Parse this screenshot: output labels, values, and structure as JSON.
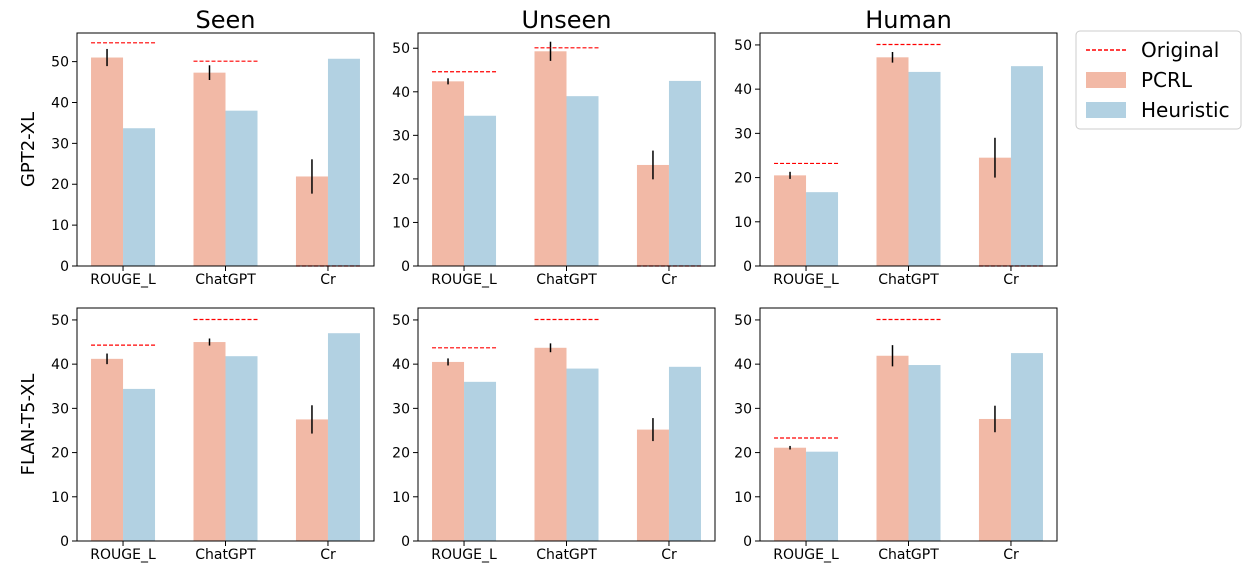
{
  "colors": {
    "pcrl": "#f2b9a6",
    "heuristic": "#b2d1e2",
    "original": "#ff0000",
    "error": "#000000",
    "axis": "#000000"
  },
  "legend": {
    "placement": "right",
    "entries": [
      {
        "label": "Original",
        "kind": "dashed-line"
      },
      {
        "label": "PCRL",
        "kind": "patch"
      },
      {
        "label": "Heuristic",
        "kind": "patch"
      }
    ]
  },
  "col_titles": [
    "Seen",
    "Unseen",
    "Human"
  ],
  "row_titles": [
    "GPT2-XL",
    "FLAN-T5-XL"
  ],
  "chart_data": [
    {
      "type": "bar",
      "row": "GPT2-XL",
      "col": "Seen",
      "categories": [
        "ROUGE_L",
        "ChatGPT",
        "Cr"
      ],
      "ylim": [
        0,
        57
      ],
      "yticks": [
        0,
        10,
        20,
        30,
        40,
        50
      ],
      "series": [
        {
          "name": "PCRL",
          "values": [
            51,
            47.3,
            21.9
          ],
          "errors": [
            2.1,
            1.8,
            4.2
          ]
        },
        {
          "name": "Heuristic",
          "values": [
            33.7,
            38,
            50.7
          ]
        }
      ],
      "original": [
        54.6,
        50.1,
        0
      ]
    },
    {
      "type": "bar",
      "row": "GPT2-XL",
      "col": "Unseen",
      "categories": [
        "ROUGE_L",
        "ChatGPT",
        "Cr"
      ],
      "ylim": [
        0,
        53.5
      ],
      "yticks": [
        0,
        10,
        20,
        30,
        40,
        50
      ],
      "series": [
        {
          "name": "PCRL",
          "values": [
            42.4,
            49.3,
            23.2
          ],
          "errors": [
            0.7,
            2.2,
            3.3
          ]
        },
        {
          "name": "Heuristic",
          "values": [
            34.5,
            39,
            42.5
          ]
        }
      ],
      "original": [
        44.6,
        50.1,
        0
      ]
    },
    {
      "type": "bar",
      "row": "GPT2-XL",
      "col": "Human",
      "categories": [
        "ROUGE_L",
        "ChatGPT",
        "Cr"
      ],
      "ylim": [
        0,
        52.7
      ],
      "yticks": [
        0,
        10,
        20,
        30,
        40,
        50
      ],
      "series": [
        {
          "name": "PCRL",
          "values": [
            20.5,
            47.2,
            24.5
          ],
          "errors": [
            0.8,
            1.2,
            4.5
          ]
        },
        {
          "name": "Heuristic",
          "values": [
            16.7,
            43.9,
            45.2
          ]
        }
      ],
      "original": [
        23.2,
        50.1,
        0
      ]
    },
    {
      "type": "bar",
      "row": "FLAN-T5-XL",
      "col": "Seen",
      "categories": [
        "ROUGE_L",
        "ChatGPT",
        "Cr"
      ],
      "ylim": [
        0,
        52.7
      ],
      "yticks": [
        0,
        10,
        20,
        30,
        40,
        50
      ],
      "series": [
        {
          "name": "PCRL",
          "values": [
            41.2,
            45,
            27.5
          ],
          "errors": [
            1.2,
            0.8,
            3.2
          ]
        },
        {
          "name": "Heuristic",
          "values": [
            34.4,
            41.8,
            47
          ]
        }
      ],
      "original": [
        44.3,
        50.1,
        null
      ]
    },
    {
      "type": "bar",
      "row": "FLAN-T5-XL",
      "col": "Unseen",
      "categories": [
        "ROUGE_L",
        "ChatGPT",
        "Cr"
      ],
      "ylim": [
        0,
        52.7
      ],
      "yticks": [
        0,
        10,
        20,
        30,
        40,
        50
      ],
      "series": [
        {
          "name": "PCRL",
          "values": [
            40.5,
            43.7,
            25.2
          ],
          "errors": [
            0.8,
            1.0,
            2.6
          ]
        },
        {
          "name": "Heuristic",
          "values": [
            36,
            39,
            39.4
          ]
        }
      ],
      "original": [
        43.7,
        50.1,
        null
      ]
    },
    {
      "type": "bar",
      "row": "FLAN-T5-XL",
      "col": "Human",
      "categories": [
        "ROUGE_L",
        "ChatGPT",
        "Cr"
      ],
      "ylim": [
        0,
        52.7
      ],
      "yticks": [
        0,
        10,
        20,
        30,
        40,
        50
      ],
      "series": [
        {
          "name": "PCRL",
          "values": [
            21.1,
            41.9,
            27.6
          ],
          "errors": [
            0.4,
            2.4,
            3.0
          ]
        },
        {
          "name": "Heuristic",
          "values": [
            20.2,
            39.8,
            42.5
          ]
        }
      ],
      "original": [
        23.3,
        50.1,
        null
      ]
    }
  ]
}
